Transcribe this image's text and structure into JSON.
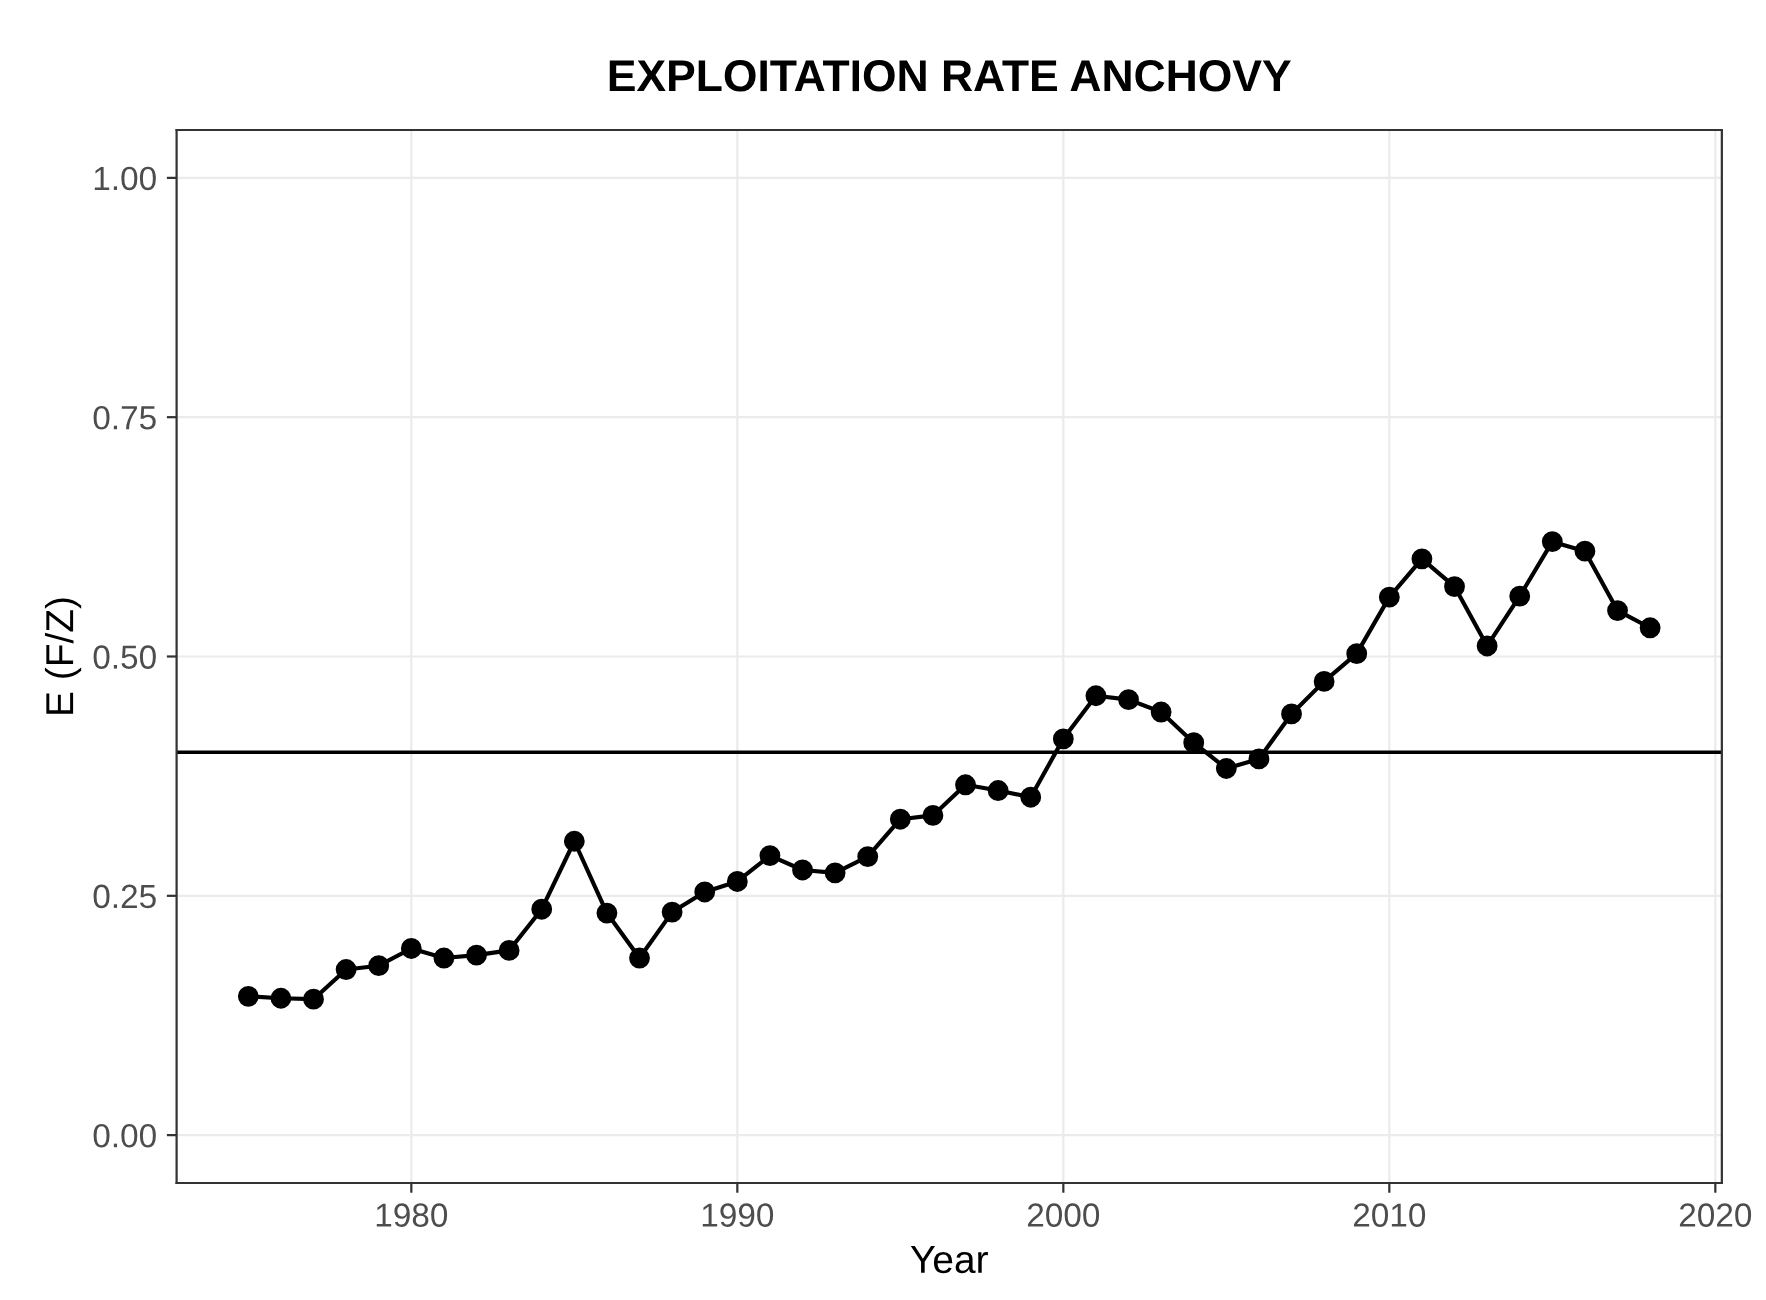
{
  "chart_data": {
    "type": "line",
    "title": "EXPLOITATION RATE ANCHOVY",
    "xlabel": "Year",
    "ylabel": "E (F/Z)",
    "x": [
      1975,
      1976,
      1977,
      1978,
      1979,
      1980,
      1981,
      1982,
      1983,
      1984,
      1985,
      1986,
      1987,
      1988,
      1989,
      1990,
      1991,
      1992,
      1993,
      1994,
      1995,
      1996,
      1997,
      1998,
      1999,
      2000,
      2001,
      2002,
      2003,
      2004,
      2005,
      2006,
      2007,
      2008,
      2009,
      2010,
      2011,
      2012,
      2013,
      2014,
      2015,
      2016,
      2017,
      2018
    ],
    "series": [
      {
        "color": "#000000",
        "values": [
          0.145,
          0.143,
          0.142,
          0.173,
          0.177,
          0.195,
          0.185,
          0.188,
          0.193,
          0.236,
          0.307,
          0.232,
          0.185,
          0.233,
          0.254,
          0.265,
          0.292,
          0.277,
          0.274,
          0.291,
          0.33,
          0.334,
          0.366,
          0.36,
          0.353,
          0.414,
          0.459,
          0.455,
          0.442,
          0.41,
          0.383,
          0.393,
          0.44,
          0.474,
          0.503,
          0.562,
          0.602,
          0.573,
          0.511,
          0.563,
          0.62,
          0.61,
          0.548,
          0.53
        ]
      }
    ],
    "xlim": [
      1972.8,
      2020.2
    ],
    "xticks": [
      1980,
      1990,
      2000,
      2010,
      2020
    ],
    "ylim": [
      -0.05,
      1.05
    ],
    "yticks": [
      {
        "value": 0,
        "label": "0.00"
      },
      {
        "value": 0.25,
        "label": "0.25"
      },
      {
        "value": 0.5,
        "label": "0.50"
      },
      {
        "value": 0.75,
        "label": "0.75"
      },
      {
        "value": 1,
        "label": "1.00"
      }
    ],
    "ref_lines": [
      {
        "axis": "y",
        "value": 0.4,
        "color": "#000000",
        "line_style": "solid"
      }
    ],
    "grid": true,
    "marker": "circle",
    "line_style": "solid",
    "legend": false
  }
}
